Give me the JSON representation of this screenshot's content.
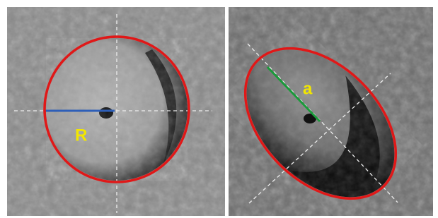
{
  "panels": [
    {
      "label": "R"
    },
    {
      "label": "a"
    }
  ]
}
